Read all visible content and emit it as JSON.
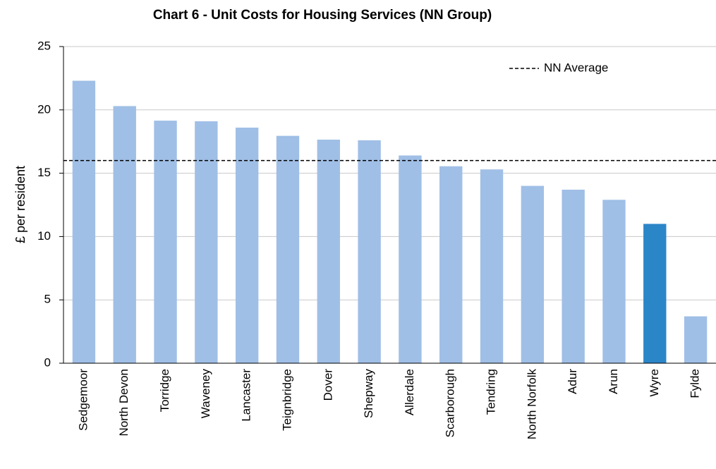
{
  "chart_data": {
    "type": "bar",
    "title": "Chart 6 - Unit Costs for Housing Services (NN Group)",
    "y_label": "£ per resident",
    "categories": [
      "Sedgemoor",
      "North Devon",
      "Torridge",
      "Waveney",
      "Lancaster",
      "Teignbridge",
      "Dover",
      "Shepway",
      "Allerdale",
      "Scarborough",
      "Tendring",
      "North Norfolk",
      "Adur",
      "Arun",
      "Wyre",
      "Fylde"
    ],
    "values": [
      22.3,
      20.3,
      19.15,
      19.1,
      18.6,
      17.95,
      17.65,
      17.6,
      16.4,
      15.55,
      15.3,
      14.0,
      13.7,
      12.9,
      11.0,
      3.7
    ],
    "colors": [
      "#a0bfe6",
      "#a0bfe6",
      "#a0bfe6",
      "#a0bfe6",
      "#a0bfe6",
      "#a0bfe6",
      "#a0bfe6",
      "#a0bfe6",
      "#a0bfe6",
      "#a0bfe6",
      "#a0bfe6",
      "#a0bfe6",
      "#a0bfe6",
      "#a0bfe6",
      "#2b86c8",
      "#a0bfe6"
    ],
    "average": {
      "name": "NN Average",
      "value": 16.0,
      "color": "#000000"
    },
    "ylim": [
      0,
      25
    ],
    "yticks": [
      0,
      5,
      10,
      15,
      20,
      25
    ],
    "grid": true,
    "legend": "top-right"
  }
}
